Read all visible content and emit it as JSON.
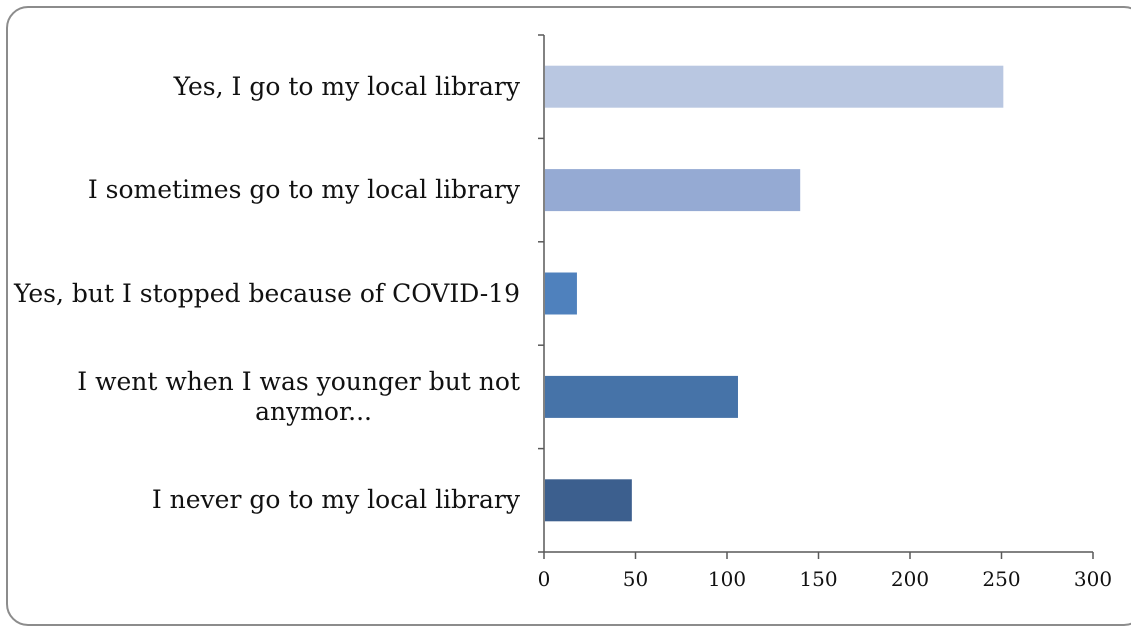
{
  "chart_data": {
    "type": "bar",
    "orientation": "horizontal",
    "categories": [
      "Yes, I go to my local library",
      "I sometimes go to my local library",
      "Yes, but I stopped because of COVID-19",
      "I went when I was younger but not anymor...",
      "I never go to my local library"
    ],
    "category_lines": [
      [
        "Yes, I go to my local library"
      ],
      [
        "I sometimes go to my local library"
      ],
      [
        "Yes, but I stopped because of COVID-19"
      ],
      [
        "I went when I was younger but not",
        "anymor..."
      ],
      [
        "I never go to my local library"
      ]
    ],
    "values": [
      251,
      140,
      18,
      106,
      48
    ],
    "colors": [
      "#b9c7e1",
      "#95aad3",
      "#4f81bd",
      "#4673a8",
      "#3c5f8e"
    ],
    "xlim": [
      0,
      300
    ],
    "xticks": [
      "0",
      "50",
      "100",
      "150",
      "200",
      "250",
      "300"
    ],
    "grid": false,
    "title": "",
    "xlabel": "",
    "ylabel": ""
  }
}
